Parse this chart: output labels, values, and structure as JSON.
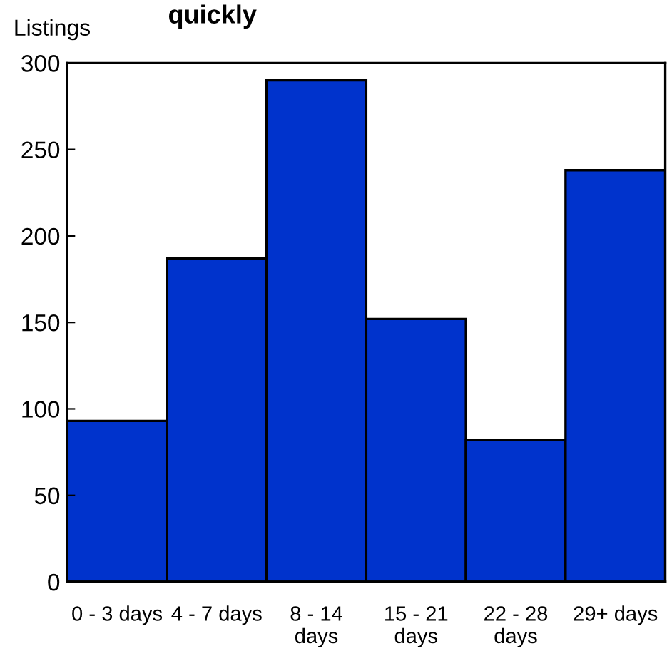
{
  "chart_data": {
    "type": "bar",
    "title": "quickly",
    "ylabel": "Listings",
    "categories": [
      "0 - 3 days",
      "4 - 7 days",
      "8 - 14\ndays",
      "15 - 21\ndays",
      "22 - 28\ndays",
      "29+ days"
    ],
    "values": [
      93,
      187,
      290,
      152,
      82,
      238
    ],
    "color": "#0033cc",
    "ylim": [
      0,
      300
    ],
    "yticks": [
      0,
      50,
      100,
      150,
      200,
      250,
      300
    ],
    "grid": false,
    "legend": false
  }
}
